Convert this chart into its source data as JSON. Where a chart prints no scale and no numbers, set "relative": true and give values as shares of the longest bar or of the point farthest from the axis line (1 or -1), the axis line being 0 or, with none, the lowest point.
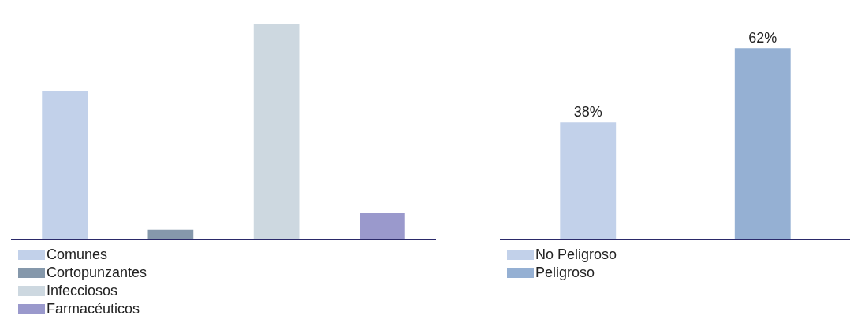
{
  "chart_data": [
    {
      "type": "bar",
      "relative": true,
      "stacked": true,
      "categories": [
        null,
        null,
        null,
        null
      ],
      "legend": "bottom",
      "tick_labels": false,
      "series": [
        {
          "name": "Comunes",
          "color": "#c2d1ea",
          "values": [
            0.687,
            null,
            null,
            null
          ]
        },
        {
          "name": "Cortopunzantes",
          "color": "#8598ab",
          "values": [
            null,
            0.045,
            null,
            null
          ]
        },
        {
          "name": "Infecciosos",
          "color": "#cdd8e0",
          "values": [
            null,
            null,
            1,
            null
          ]
        },
        {
          "name": "Farmacéuticos",
          "color": "#9a99cc",
          "values": [
            null,
            null,
            null,
            0.123
          ]
        }
      ]
    },
    {
      "type": "bar",
      "stacked": true,
      "categories": [
        null,
        null
      ],
      "legend": "bottom",
      "tick_labels": false,
      "series": [
        {
          "name": "No Peligroso",
          "color": "#c2d1ea",
          "values": [
            38,
            null
          ],
          "value_labels": [
            "38%",
            null
          ]
        },
        {
          "name": "Peligroso",
          "color": "#95b0d3",
          "values": [
            null,
            62
          ],
          "value_labels": [
            null,
            "62%"
          ]
        }
      ]
    }
  ]
}
